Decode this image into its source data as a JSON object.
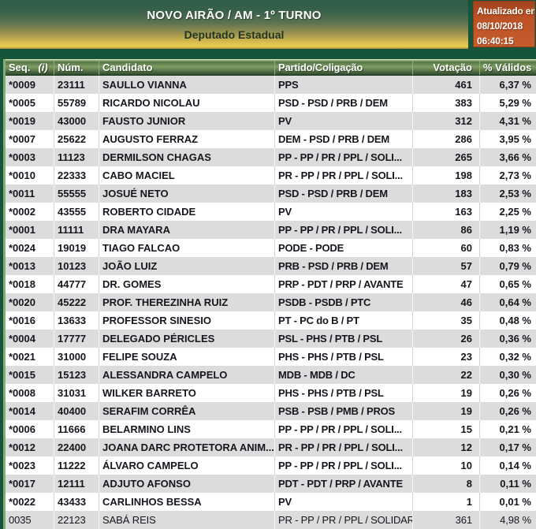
{
  "header": {
    "title": "NOVO AIRÃO / AM - 1º TURNO",
    "subtitle": "Deputado Estadual",
    "updated": {
      "label": "Atualizado em",
      "date": "08/10/2018",
      "time": "06:40:15"
    }
  },
  "table": {
    "columns": {
      "seq": "Seq.",
      "seq_info": "(i)",
      "num": "Núm.",
      "candidato": "Candidato",
      "partido": "Partido/Coligação",
      "votacao": "Votação",
      "pct": "% Válidos"
    },
    "rows": [
      {
        "seq": "*0009",
        "num": "23111",
        "candidato": "SAULLO VIANNA",
        "partido": "PPS",
        "votacao": "461",
        "pct": "6,37 %",
        "bold": true
      },
      {
        "seq": "*0005",
        "num": "55789",
        "candidato": "RICARDO NICOLAU",
        "partido": "PSD - PSD / PRB / DEM",
        "votacao": "383",
        "pct": "5,29 %",
        "bold": true
      },
      {
        "seq": "*0019",
        "num": "43000",
        "candidato": "FAUSTO JUNIOR",
        "partido": "PV",
        "votacao": "312",
        "pct": "4,31 %",
        "bold": true
      },
      {
        "seq": "*0007",
        "num": "25622",
        "candidato": "AUGUSTO FERRAZ",
        "partido": "DEM - PSD / PRB / DEM",
        "votacao": "286",
        "pct": "3,95 %",
        "bold": true
      },
      {
        "seq": "*0003",
        "num": "11123",
        "candidato": "DERMILSON CHAGAS",
        "partido": "PP - PP / PR / PPL / SOLI...",
        "votacao": "265",
        "pct": "3,66 %",
        "bold": true
      },
      {
        "seq": "*0010",
        "num": "22333",
        "candidato": "CABO MACIEL",
        "partido": "PR - PP / PR / PPL / SOLI...",
        "votacao": "198",
        "pct": "2,73 %",
        "bold": true
      },
      {
        "seq": "*0011",
        "num": "55555",
        "candidato": "JOSUÉ NETO",
        "partido": "PSD - PSD / PRB / DEM",
        "votacao": "183",
        "pct": "2,53 %",
        "bold": true
      },
      {
        "seq": "*0002",
        "num": "43555",
        "candidato": "ROBERTO CIDADE",
        "partido": "PV",
        "votacao": "163",
        "pct": "2,25 %",
        "bold": true
      },
      {
        "seq": "*0001",
        "num": "11111",
        "candidato": "DRA MAYARA",
        "partido": "PP - PP / PR / PPL / SOLI...",
        "votacao": "86",
        "pct": "1,19 %",
        "bold": true
      },
      {
        "seq": "*0024",
        "num": "19019",
        "candidato": "TIAGO FALCAO",
        "partido": "PODE - PODE",
        "votacao": "60",
        "pct": "0,83 %",
        "bold": true
      },
      {
        "seq": "*0013",
        "num": "10123",
        "candidato": "JOÃO LUIZ",
        "partido": "PRB - PSD / PRB / DEM",
        "votacao": "57",
        "pct": "0,79 %",
        "bold": true
      },
      {
        "seq": "*0018",
        "num": "44777",
        "candidato": "DR. GOMES",
        "partido": "PRP - PDT / PRP / AVANTE",
        "votacao": "47",
        "pct": "0,65 %",
        "bold": true
      },
      {
        "seq": "*0020",
        "num": "45222",
        "candidato": "PROF. THEREZINHA RUIZ",
        "partido": "PSDB - PSDB / PTC",
        "votacao": "46",
        "pct": "0,64 %",
        "bold": true
      },
      {
        "seq": "*0016",
        "num": "13633",
        "candidato": "PROFESSOR SINESIO",
        "partido": "PT - PC do B / PT",
        "votacao": "35",
        "pct": "0,48 %",
        "bold": true
      },
      {
        "seq": "*0004",
        "num": "17777",
        "candidato": "DELEGADO PÉRICLES",
        "partido": "PSL - PHS / PTB / PSL",
        "votacao": "26",
        "pct": "0,36 %",
        "bold": true
      },
      {
        "seq": "*0021",
        "num": "31000",
        "candidato": "FELIPE SOUZA",
        "partido": "PHS - PHS / PTB / PSL",
        "votacao": "23",
        "pct": "0,32 %",
        "bold": true
      },
      {
        "seq": "*0015",
        "num": "15123",
        "candidato": "ALESSANDRA CAMPELO",
        "partido": "MDB - MDB / DC",
        "votacao": "22",
        "pct": "0,30 %",
        "bold": true
      },
      {
        "seq": "*0008",
        "num": "31031",
        "candidato": "WILKER BARRETO",
        "partido": "PHS - PHS / PTB / PSL",
        "votacao": "19",
        "pct": "0,26 %",
        "bold": true
      },
      {
        "seq": "*0014",
        "num": "40400",
        "candidato": "SERAFIM CORRÊA",
        "partido": "PSB - PSB / PMB / PROS",
        "votacao": "19",
        "pct": "0,26 %",
        "bold": true
      },
      {
        "seq": "*0006",
        "num": "11666",
        "candidato": "BELARMINO LINS",
        "partido": "PP - PP / PR / PPL / SOLI...",
        "votacao": "15",
        "pct": "0,21 %",
        "bold": true
      },
      {
        "seq": "*0012",
        "num": "22400",
        "candidato": "JOANA DARC PROTETORA ANIM...",
        "partido": "PR - PP / PR / PPL / SOLI...",
        "votacao": "12",
        "pct": "0,17 %",
        "bold": true
      },
      {
        "seq": "*0023",
        "num": "11222",
        "candidato": "ÁLVARO CAMPELO",
        "partido": "PP - PP / PR / PPL / SOLI...",
        "votacao": "10",
        "pct": "0,14 %",
        "bold": true
      },
      {
        "seq": "*0017",
        "num": "12111",
        "candidato": "ADJUTO AFONSO",
        "partido": "PDT - PDT / PRP / AVANTE",
        "votacao": "8",
        "pct": "0,11 %",
        "bold": true
      },
      {
        "seq": "*0022",
        "num": "43433",
        "candidato": "CARLINHOS BESSA",
        "partido": "PV",
        "votacao": "1",
        "pct": "0,01 %",
        "bold": true
      },
      {
        "seq": "0035",
        "num": "22123",
        "candidato": "SABÁ REIS",
        "partido": "PR - PP / PR / PPL / SOLIDAR...",
        "votacao": "361",
        "pct": "4,98 %",
        "bold": false
      }
    ]
  },
  "colors": {
    "frame_green_dark": "#17553a",
    "frame_green_light": "#7fae7c",
    "banner_yellow": "#e6ca52",
    "updated_orange": "#c25729",
    "table_header_green": "#7f9e63",
    "row_stripe_gray": "#dcdcdc",
    "text_dark": "#16161f"
  }
}
